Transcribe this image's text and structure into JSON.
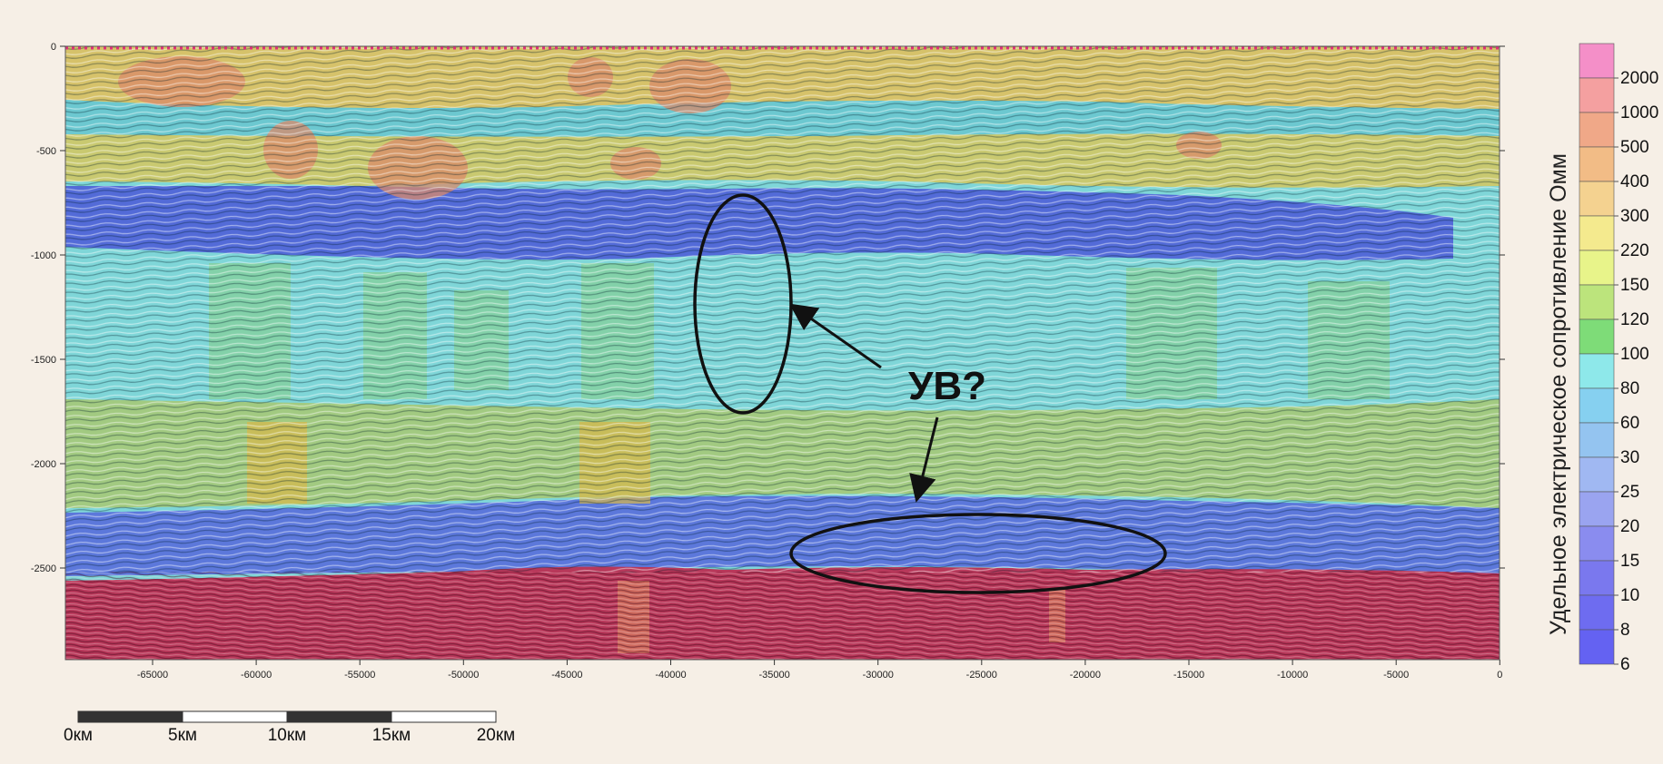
{
  "section": {
    "x_ticks": [
      "-65000",
      "-60000",
      "-55000",
      "-50000",
      "-45000",
      "-40000",
      "-35000",
      "-30000",
      "-25000",
      "-20000",
      "-15000",
      "-10000",
      "-5000",
      "0"
    ],
    "y_ticks": [
      "0",
      "-500",
      "-1000",
      "-1500",
      "-2000",
      "-2500"
    ]
  },
  "scale_bar": {
    "labels": [
      "0км",
      "5км",
      "10км",
      "15км",
      "20км"
    ]
  },
  "legend": {
    "title": "Удельное электрическое сопротивление Омм",
    "entries": [
      {
        "label": "2000",
        "color": "#f48fc8"
      },
      {
        "label": "1000",
        "color": "#f4a0a0"
      },
      {
        "label": "500",
        "color": "#f0a888"
      },
      {
        "label": "400",
        "color": "#f2bc86"
      },
      {
        "label": "300",
        "color": "#f4d290"
      },
      {
        "label": "220",
        "color": "#f4ea8e"
      },
      {
        "label": "150",
        "color": "#e8f48a"
      },
      {
        "label": "120",
        "color": "#bce47c"
      },
      {
        "label": "100",
        "color": "#7edc78"
      },
      {
        "label": "80",
        "color": "#8ee8ea"
      },
      {
        "label": "60",
        "color": "#86d0f0"
      },
      {
        "label": "30",
        "color": "#94c4f0"
      },
      {
        "label": "25",
        "color": "#a0b8f2"
      },
      {
        "label": "20",
        "color": "#9aa4f0"
      },
      {
        "label": "15",
        "color": "#8a8cef"
      },
      {
        "label": "10",
        "color": "#7a78ee"
      },
      {
        "label": "8",
        "color": "#6e6cf0"
      },
      {
        "label": "6",
        "color": "#6462f2"
      }
    ]
  },
  "annotation": {
    "label": "УВ?"
  }
}
